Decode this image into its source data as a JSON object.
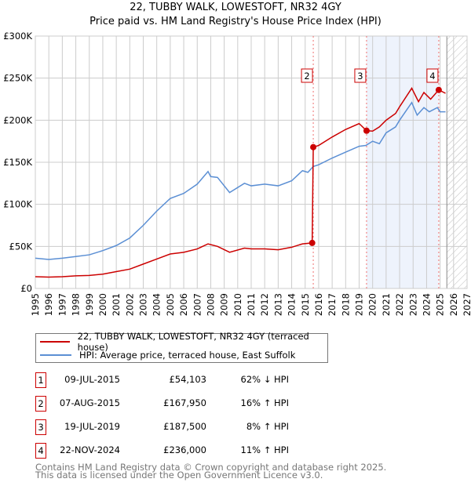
{
  "chart_data": {
    "type": "line",
    "title": "22, TUBBY WALK, LOWESTOFT, NR32 4GY",
    "subtitle": "Price paid vs. HM Land Registry's House Price Index (HPI)",
    "xlim": [
      1995,
      2027
    ],
    "ylim": [
      0,
      300000
    ],
    "x_ticks": [
      "1995",
      "1996",
      "1997",
      "1998",
      "1999",
      "2000",
      "2001",
      "2002",
      "2003",
      "2004",
      "2005",
      "2006",
      "2007",
      "2008",
      "2009",
      "2010",
      "2011",
      "2012",
      "2013",
      "2014",
      "2015",
      "2016",
      "2017",
      "2018",
      "2019",
      "2020",
      "2021",
      "2022",
      "2023",
      "2024",
      "2025",
      "2026",
      "2027"
    ],
    "y_ticks": [
      {
        "v": 0,
        "label": "£0"
      },
      {
        "v": 50000,
        "label": "£50K"
      },
      {
        "v": 100000,
        "label": "£100K"
      },
      {
        "v": 150000,
        "label": "£150K"
      },
      {
        "v": 200000,
        "label": "£200K"
      },
      {
        "v": 250000,
        "label": "£250K"
      },
      {
        "v": 300000,
        "label": "£300K"
      }
    ],
    "grid": true,
    "shaded_range": [
      2019.55,
      2024.9
    ],
    "forecast_from": 2025.5,
    "series": [
      {
        "name": "22, TUBBY WALK, LOWESTOFT, NR32 4GY (terraced house)",
        "color": "#cc0000",
        "x": [
          1995,
          1996,
          1997,
          1998,
          1999,
          2000,
          2001,
          2002,
          2003,
          2004,
          2005,
          2006,
          2007,
          2007.8,
          2008.5,
          2009.4,
          2010.5,
          2011,
          2012,
          2013,
          2014,
          2014.8,
          2015.52,
          2015.6,
          2016,
          2017,
          2018,
          2019,
          2019.55,
          2020,
          2020.5,
          2021,
          2021.7,
          2022,
          2022.9,
          2023.4,
          2023.8,
          2024.3,
          2024.9,
          2025.4
        ],
        "y": [
          14000,
          13500,
          14000,
          15000,
          15500,
          17000,
          20000,
          23000,
          29000,
          35000,
          41000,
          43000,
          47000,
          53000,
          50000,
          43000,
          48000,
          47000,
          47000,
          46000,
          49000,
          53000,
          54103,
          167950,
          170000,
          180000,
          189000,
          196000,
          187500,
          187000,
          192000,
          200000,
          208000,
          216000,
          238000,
          222000,
          233000,
          225000,
          236000,
          232000
        ]
      },
      {
        "name": "HPI: Average price, terraced house, East Suffolk",
        "color": "#5b8fd4",
        "x": [
          1995,
          1996,
          1997,
          1998,
          1999,
          2000,
          2001,
          2002,
          2003,
          2004,
          2005,
          2006,
          2007,
          2007.8,
          2008,
          2008.5,
          2009.4,
          2010.5,
          2011,
          2012,
          2013,
          2014,
          2014.8,
          2015.2,
          2015.6,
          2016,
          2017,
          2018,
          2019,
          2019.5,
          2020,
          2020.5,
          2021,
          2021.7,
          2022,
          2022.9,
          2023.3,
          2023.8,
          2024.2,
          2024.8,
          2025,
          2025.4
        ],
        "y": [
          36000,
          34500,
          36000,
          38000,
          40000,
          45000,
          51000,
          60000,
          75000,
          92000,
          107000,
          113000,
          124000,
          139000,
          133000,
          132000,
          114000,
          125000,
          122000,
          124000,
          122000,
          128000,
          140000,
          138000,
          145000,
          147000,
          155000,
          162000,
          169000,
          170000,
          175000,
          172000,
          185000,
          192000,
          200000,
          221000,
          206000,
          215000,
          210000,
          215000,
          210000,
          210000
        ]
      }
    ],
    "annotations": [
      {
        "label": "1",
        "x": 2015.52,
        "y": 54103,
        "shown_on_chart": false
      },
      {
        "label": "2",
        "x": 2015.6,
        "y": 167950,
        "shown_on_chart": true
      },
      {
        "label": "3",
        "x": 2019.55,
        "y": 187500,
        "shown_on_chart": true
      },
      {
        "label": "4",
        "x": 2024.9,
        "y": 236000,
        "shown_on_chart": true
      }
    ]
  },
  "sales": [
    {
      "num": "1",
      "date": "09-JUL-2015",
      "price": "£54,103",
      "hpi": "62% ↓ HPI"
    },
    {
      "num": "2",
      "date": "07-AUG-2015",
      "price": "£167,950",
      "hpi": "16% ↑ HPI"
    },
    {
      "num": "3",
      "date": "19-JUL-2019",
      "price": "£187,500",
      "hpi": "8% ↑ HPI"
    },
    {
      "num": "4",
      "date": "22-NOV-2024",
      "price": "£236,000",
      "hpi": "11% ↑ HPI"
    }
  ],
  "footer": {
    "line1": "Contains HM Land Registry data © Crown copyright and database right 2025.",
    "line2": "This data is licensed under the Open Government Licence v3.0."
  }
}
